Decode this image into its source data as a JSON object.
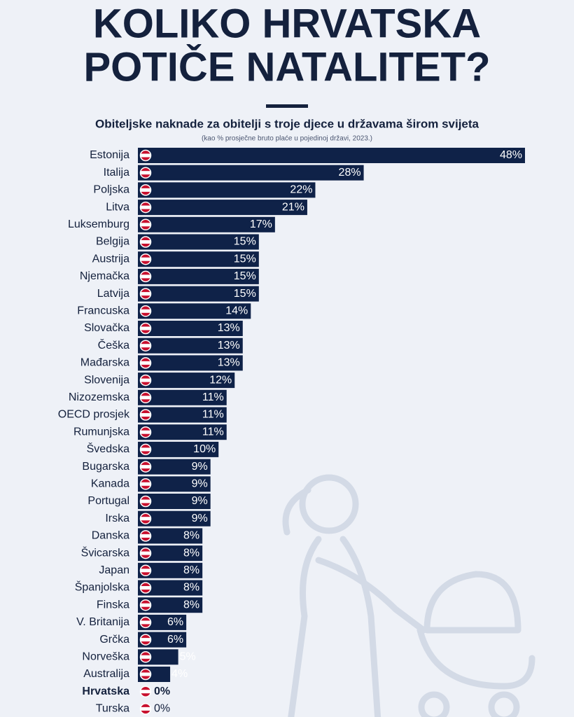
{
  "chart_data": {
    "type": "bar",
    "title": [
      "KOLIKO HRVATSKA",
      "POTIČE NATALITET?"
    ],
    "subtitle": "Obiteljske naknade za obitelji s troje djece u državama širom svijeta",
    "note": "(kao % prosječne bruto plaće u pojedinoj državi, 2023.)",
    "categories": [
      "Estonija",
      "Italija",
      "Poljska",
      "Litva",
      "Luksemburg",
      "Belgija",
      "Austrija",
      "Njemačka",
      "Latvija",
      "Francuska",
      "Slovačka",
      "Češka",
      "Mađarska",
      "Slovenija",
      "Nizozemska",
      "OECD prosjek",
      "Rumunjska",
      "Švedska",
      "Bugarska",
      "Kanada",
      "Portugal",
      "Irska",
      "Danska",
      "Švicarska",
      "Japan",
      "Španjolska",
      "Finska",
      "V. Britanija",
      "Grčka",
      "Norveška",
      "Australija",
      "Hrvatska",
      "Turska"
    ],
    "values": [
      48,
      28,
      22,
      21,
      17,
      15,
      15,
      15,
      15,
      14,
      13,
      13,
      13,
      12,
      11,
      11,
      11,
      10,
      9,
      9,
      9,
      9,
      8,
      8,
      8,
      8,
      8,
      6,
      6,
      5,
      4,
      0,
      0
    ],
    "value_labels": [
      "48%",
      "28%",
      "22%",
      "21%",
      "17%",
      "15%",
      "15%",
      "15%",
      "15%",
      "14%",
      "13%",
      "13%",
      "13%",
      "12%",
      "11%",
      "11%",
      "11%",
      "10%",
      "9%",
      "9%",
      "9%",
      "9%",
      "8%",
      "8%",
      "8%",
      "8%",
      "8%",
      "6%",
      "6%",
      "5%",
      "4%",
      "0%",
      "0%"
    ],
    "color": "#0f2248",
    "highlight_category": "Hrvatska"
  }
}
